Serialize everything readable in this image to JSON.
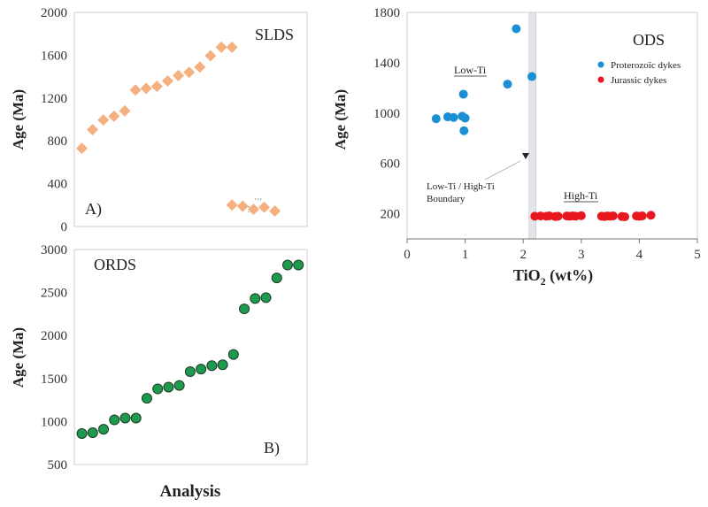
{
  "figure": {
    "xlabel_bottom": "Analysis"
  },
  "chart_data": [
    {
      "id": "SLDS",
      "type": "scatter",
      "title": "SLDS",
      "panel_label": "A)",
      "xlabel": "",
      "ylabel": "Age (Ma)",
      "ylim": [
        0,
        2000
      ],
      "yticks": [
        "0",
        "400",
        "800",
        "1200",
        "1600",
        "2000"
      ],
      "marker": "diamond",
      "color": "#f5b07f",
      "grid": false,
      "series": [
        {
          "x": [
            1,
            2,
            3,
            4,
            5,
            6,
            7,
            8,
            9,
            10,
            11,
            12,
            13,
            14,
            15
          ],
          "values": [
            730,
            905,
            995,
            1030,
            1080,
            1275,
            1290,
            1310,
            1360,
            1410,
            1440,
            1490,
            1595,
            1675,
            1675
          ]
        },
        {
          "x": [
            15,
            16,
            17,
            18,
            19
          ],
          "values": [
            200,
            190,
            160,
            180,
            145
          ]
        }
      ],
      "xlim": [
        0.3,
        22
      ]
    },
    {
      "id": "ORDS",
      "type": "scatter",
      "title": "ORDS",
      "panel_label": "B)",
      "xlabel": "Analysis",
      "ylabel": "Age (Ma)",
      "ylim": [
        500,
        3000
      ],
      "yticks": [
        "500",
        "1000",
        "1500",
        "2000",
        "2500",
        "3000"
      ],
      "marker": "circle",
      "color": "#1e9a4e",
      "grid": false,
      "series": [
        {
          "x": [
            1,
            2,
            3,
            4,
            5,
            6,
            7,
            8,
            9,
            10,
            11,
            12,
            13,
            14,
            15,
            16,
            17,
            18,
            19,
            20,
            21
          ],
          "values": [
            860,
            870,
            910,
            1020,
            1040,
            1040,
            1270,
            1380,
            1400,
            1420,
            1580,
            1610,
            1650,
            1660,
            1780,
            2310,
            2430,
            2440,
            2670,
            2820,
            2820
          ]
        }
      ],
      "xlim": [
        0.3,
        21.8
      ]
    },
    {
      "id": "ODS",
      "type": "scatter",
      "title": "ODS",
      "xlabel": "TiO2 (wt%)",
      "xlabel_main": "TiO",
      "xlabel_sub": "2",
      "xlabel_tail": " (wt%)",
      "ylabel": "Age (Ma)",
      "xlim": [
        0,
        5
      ],
      "ylim": [
        0,
        1800
      ],
      "xticks": [
        "0",
        "1",
        "2",
        "3",
        "4",
        "5"
      ],
      "yticks": [
        "200",
        "600",
        "1000",
        "1400",
        "1800"
      ],
      "grid": false,
      "legend_position": "top-right",
      "band": [
        2.1,
        2.22
      ],
      "annotations": {
        "low_ti": "Low-Ti",
        "high_ti": "High-Ti",
        "boundary_line1": "Low-Ti / High-Ti",
        "boundary_line2": "Boundary"
      },
      "series": [
        {
          "name": "Proterozoïc dykes",
          "color": "#1a8fd6",
          "x": [
            0.5,
            0.7,
            0.8,
            0.95,
            1.0,
            0.97,
            0.98,
            1.73,
            2.15,
            1.88
          ],
          "values": [
            955,
            970,
            965,
            975,
            960,
            1150,
            860,
            1230,
            1290,
            1670
          ]
        },
        {
          "name": "Jurassic dykes",
          "color": "#e8161e",
          "x": [
            2.2,
            2.3,
            2.4,
            2.45,
            2.55,
            2.6,
            2.75,
            2.8,
            2.85,
            2.9,
            3.0,
            3.35,
            3.4,
            3.45,
            3.5,
            3.55,
            3.7,
            3.75,
            3.95,
            4.0,
            4.05,
            4.2
          ],
          "values": [
            180,
            182,
            180,
            183,
            178,
            180,
            182,
            180,
            183,
            180,
            185,
            180,
            178,
            182,
            180,
            183,
            178,
            176,
            182,
            180,
            183,
            188
          ]
        }
      ]
    }
  ]
}
